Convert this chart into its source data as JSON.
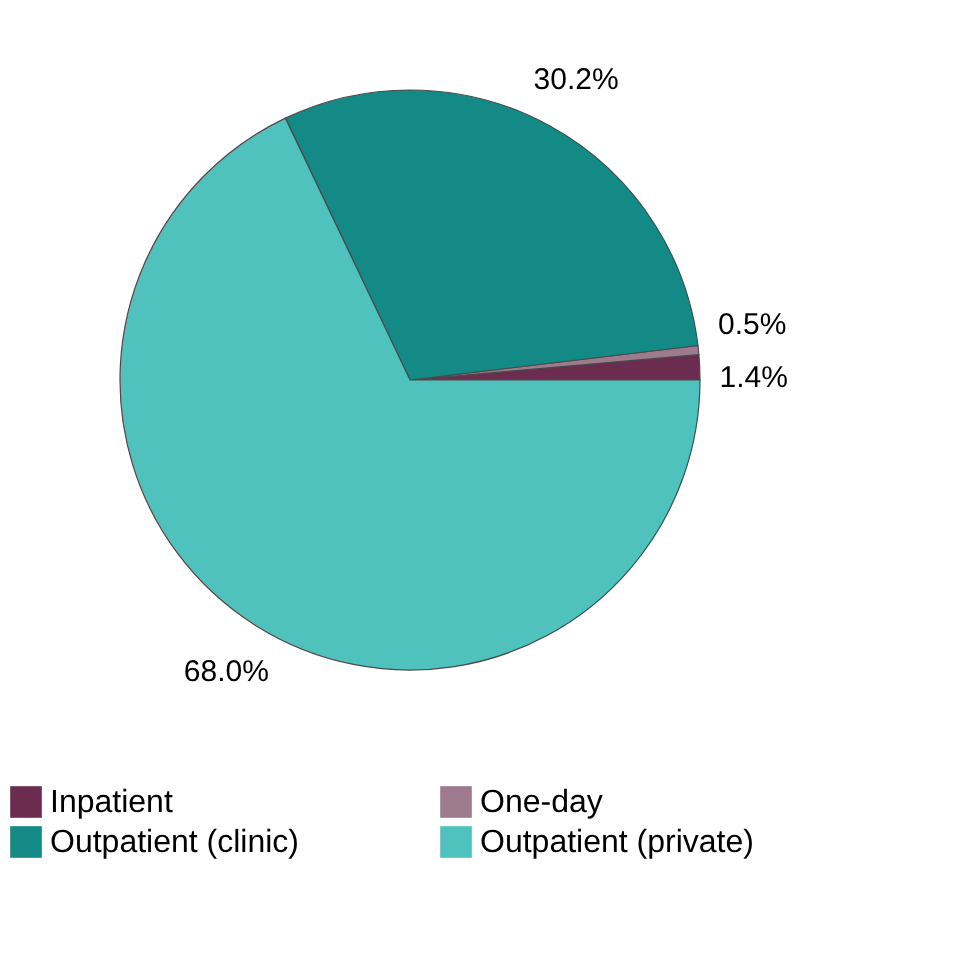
{
  "chart_data": {
    "type": "pie",
    "categories": [
      "Inpatient",
      "One-day",
      "Outpatient (clinic)",
      "Outpatient (private)"
    ],
    "values": [
      1.4,
      0.5,
      30.2,
      68.0
    ],
    "value_labels": [
      "1.4%",
      "0.5%",
      "30.2%",
      "68.0%"
    ],
    "colors": [
      "#6b2c50",
      "#9e7a8e",
      "#138a85",
      "#4fc2bd"
    ],
    "legend": "bottom"
  }
}
